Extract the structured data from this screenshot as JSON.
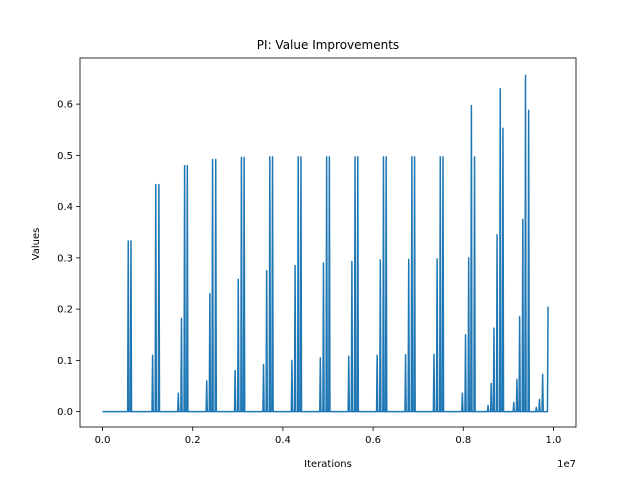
{
  "chart_data": {
    "type": "line",
    "title": "PI: Value Improvements",
    "xlabel": "Iterations",
    "ylabel": "Values",
    "x_offset_label": "1e7",
    "xlim": [
      -0.05,
      1.05
    ],
    "ylim": [
      -0.03,
      0.69
    ],
    "x_ticks": [
      0.0,
      0.2,
      0.4,
      0.6,
      0.8,
      1.0
    ],
    "x_tick_labels": [
      "0.0",
      "0.2",
      "0.4",
      "0.6",
      "0.8",
      "1.0"
    ],
    "y_ticks": [
      0.0,
      0.1,
      0.2,
      0.3,
      0.4,
      0.5,
      0.6
    ],
    "y_tick_labels": [
      "0.0",
      "0.1",
      "0.2",
      "0.3",
      "0.4",
      "0.5",
      "0.6"
    ],
    "grid": false,
    "series_color": "#1f77b4",
    "series": [
      {
        "x_unit": "1e7 iterations",
        "spikes": [
          {
            "x": 0.057,
            "y": 0.333
          },
          {
            "x": 0.063,
            "y": 0.333
          },
          {
            "x": 0.111,
            "y": 0.11
          },
          {
            "x": 0.118,
            "y": 0.443
          },
          {
            "x": 0.125,
            "y": 0.443
          },
          {
            "x": 0.168,
            "y": 0.036
          },
          {
            "x": 0.175,
            "y": 0.182
          },
          {
            "x": 0.182,
            "y": 0.48
          },
          {
            "x": 0.188,
            "y": 0.48
          },
          {
            "x": 0.231,
            "y": 0.06
          },
          {
            "x": 0.238,
            "y": 0.23
          },
          {
            "x": 0.244,
            "y": 0.492
          },
          {
            "x": 0.251,
            "y": 0.492
          },
          {
            "x": 0.294,
            "y": 0.08
          },
          {
            "x": 0.301,
            "y": 0.258
          },
          {
            "x": 0.308,
            "y": 0.496
          },
          {
            "x": 0.314,
            "y": 0.496
          },
          {
            "x": 0.357,
            "y": 0.092
          },
          {
            "x": 0.364,
            "y": 0.275
          },
          {
            "x": 0.371,
            "y": 0.497
          },
          {
            "x": 0.377,
            "y": 0.497
          },
          {
            "x": 0.42,
            "y": 0.1
          },
          {
            "x": 0.427,
            "y": 0.285
          },
          {
            "x": 0.434,
            "y": 0.497
          },
          {
            "x": 0.44,
            "y": 0.497
          },
          {
            "x": 0.483,
            "y": 0.105
          },
          {
            "x": 0.49,
            "y": 0.29
          },
          {
            "x": 0.497,
            "y": 0.497
          },
          {
            "x": 0.503,
            "y": 0.497
          },
          {
            "x": 0.546,
            "y": 0.108
          },
          {
            "x": 0.553,
            "y": 0.293
          },
          {
            "x": 0.56,
            "y": 0.497
          },
          {
            "x": 0.566,
            "y": 0.497
          },
          {
            "x": 0.609,
            "y": 0.11
          },
          {
            "x": 0.616,
            "y": 0.296
          },
          {
            "x": 0.623,
            "y": 0.497
          },
          {
            "x": 0.629,
            "y": 0.497
          },
          {
            "x": 0.672,
            "y": 0.111
          },
          {
            "x": 0.679,
            "y": 0.297
          },
          {
            "x": 0.686,
            "y": 0.497
          },
          {
            "x": 0.692,
            "y": 0.497
          },
          {
            "x": 0.735,
            "y": 0.112
          },
          {
            "x": 0.742,
            "y": 0.298
          },
          {
            "x": 0.749,
            "y": 0.497
          },
          {
            "x": 0.755,
            "y": 0.497
          },
          {
            "x": 0.798,
            "y": 0.036
          },
          {
            "x": 0.805,
            "y": 0.15
          },
          {
            "x": 0.812,
            "y": 0.3
          },
          {
            "x": 0.818,
            "y": 0.597
          },
          {
            "x": 0.825,
            "y": 0.497
          },
          {
            "x": 0.855,
            "y": 0.012
          },
          {
            "x": 0.862,
            "y": 0.055
          },
          {
            "x": 0.868,
            "y": 0.163
          },
          {
            "x": 0.875,
            "y": 0.345
          },
          {
            "x": 0.882,
            "y": 0.63
          },
          {
            "x": 0.888,
            "y": 0.553
          },
          {
            "x": 0.912,
            "y": 0.018
          },
          {
            "x": 0.919,
            "y": 0.063
          },
          {
            "x": 0.925,
            "y": 0.185
          },
          {
            "x": 0.932,
            "y": 0.375
          },
          {
            "x": 0.938,
            "y": 0.656
          },
          {
            "x": 0.945,
            "y": 0.588
          },
          {
            "x": 0.962,
            "y": 0.008
          },
          {
            "x": 0.969,
            "y": 0.024
          },
          {
            "x": 0.976,
            "y": 0.073
          },
          {
            "x": 0.988,
            "y": 0.205
          }
        ],
        "x_end": 0.99,
        "baseline": 0.0
      }
    ]
  }
}
